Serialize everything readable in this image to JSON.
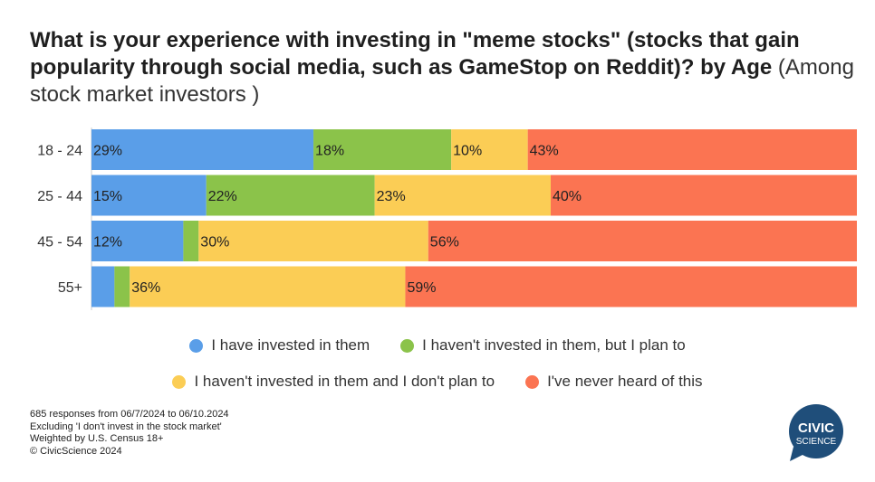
{
  "title": "What is your experience with investing in \"meme stocks\" (stocks that gain popularity through social media, such as GameStop on Reddit)? by Age",
  "subtitle": "(Among stock market investors )",
  "colors": {
    "invested": "#5a9ee8",
    "plan": "#8bc34a",
    "no_plan": "#fbcd55",
    "never": "#fb7452"
  },
  "chart_data": {
    "type": "bar",
    "orientation": "horizontal",
    "stacked": true,
    "normalized": true,
    "categories": [
      "18 - 24",
      "25 - 44",
      "45 - 54",
      "55+"
    ],
    "series": [
      {
        "name": "I have invested in them",
        "values": [
          29,
          15,
          12,
          3
        ],
        "labels": [
          "29%",
          "15%",
          "12%",
          ""
        ],
        "color": "#5a9ee8"
      },
      {
        "name": "I haven't invested in them, but I plan to",
        "values": [
          18,
          22,
          2,
          2
        ],
        "labels": [
          "18%",
          "22%",
          "",
          ""
        ],
        "color": "#8bc34a"
      },
      {
        "name": "I haven't invested in them and I don't plan to",
        "values": [
          10,
          23,
          30,
          36
        ],
        "labels": [
          "10%",
          "23%",
          "30%",
          "36%"
        ],
        "color": "#fbcd55"
      },
      {
        "name": "I've never heard of this",
        "values": [
          43,
          40,
          56,
          59
        ],
        "labels": [
          "43%",
          "40%",
          "56%",
          "59%"
        ],
        "color": "#fb7452"
      }
    ],
    "legend_position": "bottom",
    "grid": false
  },
  "legend": {
    "row1": [
      "I have invested in them",
      "I haven't invested in them, but I plan to"
    ],
    "row2": [
      "I haven't invested in them and I don't plan to",
      "I've never heard of this"
    ]
  },
  "footnotes": [
    "685 responses from 06/7/2024 to 06/10.2024",
    "Excluding 'I don't invest in the stock market'",
    "Weighted by U.S. Census 18+",
    "© CivicScience 2024"
  ],
  "logo": {
    "line1": "CIVIC",
    "line2": "SCIENCE",
    "color": "#1f4e7a"
  }
}
